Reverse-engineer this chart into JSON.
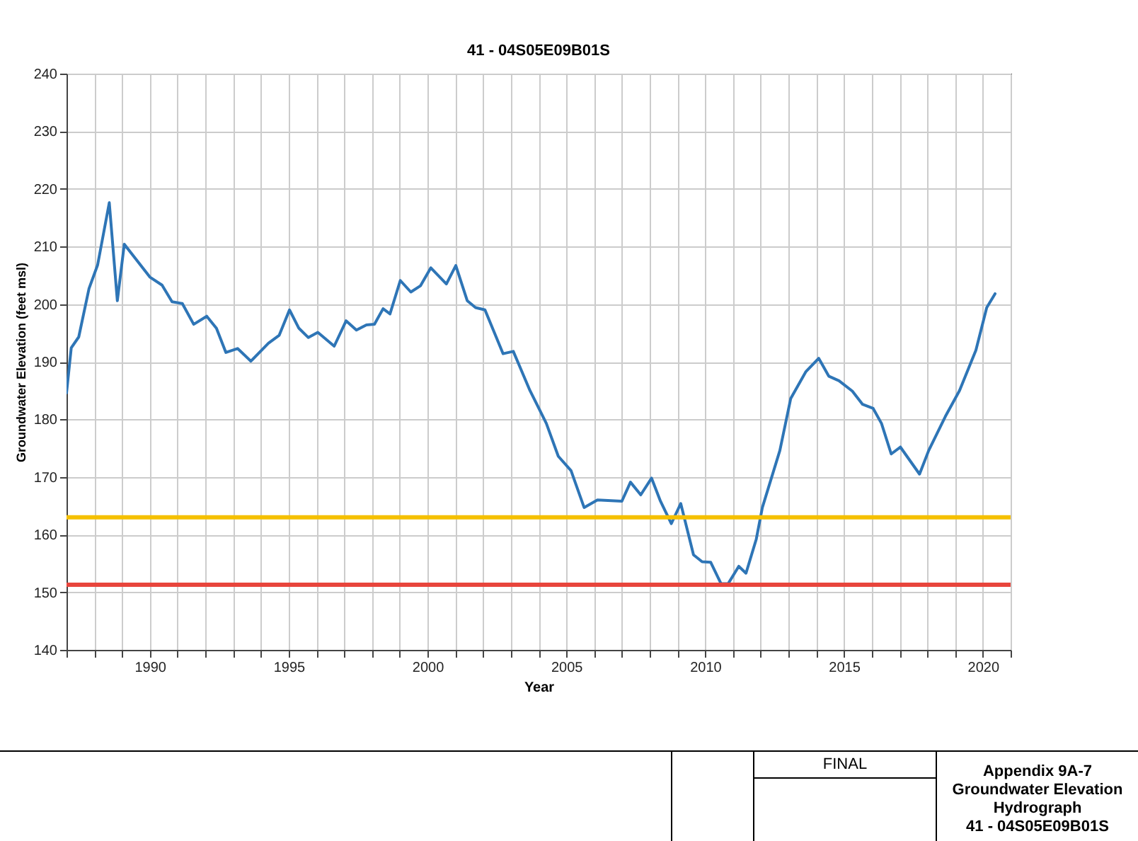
{
  "chart_data": {
    "type": "line",
    "title": "41 - 04S05E09B01S",
    "xlabel": "Year",
    "ylabel": "Groundwater Elevation (feet msl)",
    "series": [
      {
        "color": "#2e75b6",
        "x": [
          1987.0,
          1987.17,
          1987.44,
          1987.81,
          1988.12,
          1988.54,
          1988.83,
          1989.08,
          1990.0,
          1990.44,
          1990.8,
          1991.17,
          1991.58,
          1992.05,
          1992.4,
          1992.74,
          1993.16,
          1993.64,
          1994.27,
          1994.66,
          1995.03,
          1995.37,
          1995.71,
          1996.05,
          1996.64,
          1997.07,
          1997.44,
          1997.8,
          1998.09,
          1998.4,
          1998.65,
          1999.02,
          1999.4,
          1999.75,
          2000.12,
          2000.68,
          2001.02,
          2001.43,
          2001.73,
          2002.07,
          2002.72,
          2003.09,
          2003.69,
          2004.28,
          2004.71,
          2005.17,
          2005.64,
          2006.12,
          2007.0,
          2007.31,
          2007.68,
          2008.07,
          2008.39,
          2008.78,
          2009.12,
          2009.58,
          2009.89,
          2010.2,
          2010.57,
          2010.83,
          2011.21,
          2011.47,
          2011.84,
          2012.06,
          2012.69,
          2013.08,
          2013.63,
          2014.09,
          2014.45,
          2014.82,
          2015.3,
          2015.67,
          2016.05,
          2016.35,
          2016.7,
          2017.03,
          2017.72,
          2018.05,
          2018.65,
          2019.16,
          2019.75,
          2020.14,
          2020.44
        ],
        "values": [
          184.6,
          192.4,
          194.3,
          202.7,
          206.8,
          217.6,
          200.6,
          210.4,
          204.7,
          203.3,
          200.4,
          200.1,
          196.5,
          197.9,
          195.8,
          191.6,
          192.3,
          190.1,
          193.2,
          194.6,
          199.0,
          195.8,
          194.2,
          195.1,
          192.7,
          197.1,
          195.5,
          196.4,
          196.5,
          199.2,
          198.3,
          204.1,
          202.1,
          203.2,
          206.3,
          203.5,
          206.7,
          200.6,
          199.4,
          199.0,
          191.4,
          191.8,
          185.0,
          179.3,
          173.6,
          171.1,
          164.7,
          166.0,
          165.8,
          169.1,
          166.9,
          169.8,
          165.8,
          161.9,
          165.4,
          156.5,
          155.3,
          155.2,
          151.5,
          151.5,
          154.5,
          153.3,
          159.2,
          164.7,
          174.6,
          183.6,
          188.3,
          190.6,
          187.5,
          186.7,
          184.9,
          182.6,
          181.9,
          179.3,
          174.0,
          175.2,
          170.5,
          174.6,
          180.5,
          185.0,
          192.0,
          199.4,
          201.8
        ]
      }
    ],
    "xlim": [
      1987,
      2021
    ],
    "ylim": [
      140,
      240
    ],
    "xticks": [
      {
        "value": 1987,
        "label": null
      },
      {
        "value": 1988,
        "label": null
      },
      {
        "value": 1989,
        "label": null
      },
      1990,
      {
        "value": 1991,
        "label": null
      },
      {
        "value": 1992,
        "label": null
      },
      {
        "value": 1993,
        "label": null
      },
      {
        "value": 1994,
        "label": null
      },
      1995,
      {
        "value": 1996,
        "label": null
      },
      {
        "value": 1997,
        "label": null
      },
      {
        "value": 1998,
        "label": null
      },
      {
        "value": 1999,
        "label": null
      },
      2000,
      {
        "value": 2001,
        "label": null
      },
      {
        "value": 2002,
        "label": null
      },
      {
        "value": 2003,
        "label": null
      },
      {
        "value": 2004,
        "label": null
      },
      2005,
      {
        "value": 2006,
        "label": null
      },
      {
        "value": 2007,
        "label": null
      },
      {
        "value": 2008,
        "label": null
      },
      {
        "value": 2009,
        "label": null
      },
      2010,
      {
        "value": 2011,
        "label": null
      },
      {
        "value": 2012,
        "label": null
      },
      {
        "value": 2013,
        "label": null
      },
      {
        "value": 2014,
        "label": null
      },
      2015,
      {
        "value": 2016,
        "label": null
      },
      {
        "value": 2017,
        "label": null
      },
      {
        "value": 2018,
        "label": null
      },
      {
        "value": 2019,
        "label": null
      },
      2020,
      {
        "value": 2021,
        "label": null
      }
    ],
    "yticks": [
      140,
      150,
      160,
      170,
      180,
      190,
      200,
      210,
      220,
      230,
      240
    ],
    "ref_lines": [
      {
        "axis": "y",
        "value": 163,
        "color": "#f5c000"
      },
      {
        "axis": "y",
        "value": 151.3,
        "color": "#e8453c"
      }
    ],
    "grid": true,
    "marker": "none",
    "line_style": "solid",
    "annotations": [
      "FINAL",
      "Appendix 9A-7",
      "Groundwater Elevation",
      "Hydrograph",
      "41 - 04S05E09B01S"
    ]
  }
}
